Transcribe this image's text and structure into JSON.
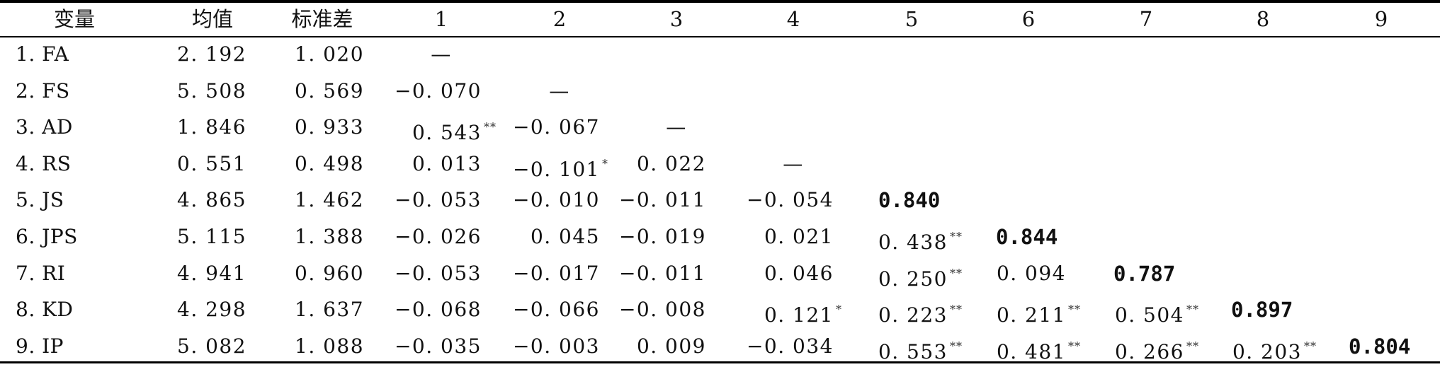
{
  "table": {
    "headers": [
      "变量",
      "均值",
      "标准差",
      "1",
      "2",
      "3",
      "4",
      "5",
      "6",
      "7",
      "8",
      "9"
    ],
    "rows": [
      {
        "var": "1. FA",
        "mean": "2. 192",
        "sd": "1. 020",
        "c": [
          {
            "v": "—"
          }
        ]
      },
      {
        "var": "2. FS",
        "mean": "5. 508",
        "sd": "0. 569",
        "c": [
          {
            "v": "−0. 070"
          },
          {
            "v": "—"
          }
        ]
      },
      {
        "var": "3. AD",
        "mean": "1. 846",
        "sd": "0. 933",
        "c": [
          {
            "v": "0. 543",
            "sig": "**"
          },
          {
            "v": "−0. 067"
          },
          {
            "v": "—"
          }
        ]
      },
      {
        "var": "4. RS",
        "mean": "0. 551",
        "sd": "0. 498",
        "c": [
          {
            "v": "0. 013"
          },
          {
            "v": "−0. 101",
            "sig": "*"
          },
          {
            "v": "0. 022"
          },
          {
            "v": "—"
          }
        ]
      },
      {
        "var": "5. JS",
        "mean": "4. 865",
        "sd": "1. 462",
        "c": [
          {
            "v": "−0. 053"
          },
          {
            "v": "−0. 010"
          },
          {
            "v": "−0. 011"
          },
          {
            "v": "−0. 054"
          },
          {
            "v": "0.840",
            "bold": true
          }
        ]
      },
      {
        "var": "6. JPS",
        "mean": "5. 115",
        "sd": "1. 388",
        "c": [
          {
            "v": "−0. 026"
          },
          {
            "v": "0. 045"
          },
          {
            "v": "−0. 019"
          },
          {
            "v": "0. 021"
          },
          {
            "v": "0. 438",
            "sig": "**"
          },
          {
            "v": "0.844",
            "bold": true
          }
        ]
      },
      {
        "var": "7. RI",
        "mean": "4. 941",
        "sd": "0. 960",
        "c": [
          {
            "v": "−0. 053"
          },
          {
            "v": "−0. 017"
          },
          {
            "v": "−0. 011"
          },
          {
            "v": "0. 046"
          },
          {
            "v": "0. 250",
            "sig": "**"
          },
          {
            "v": "0. 094"
          },
          {
            "v": "0.787",
            "bold": true
          }
        ]
      },
      {
        "var": "8. KD",
        "mean": "4. 298",
        "sd": "1. 637",
        "c": [
          {
            "v": "−0. 068"
          },
          {
            "v": "−0. 066"
          },
          {
            "v": "−0. 008"
          },
          {
            "v": "0. 121",
            "sig": "*"
          },
          {
            "v": "0. 223",
            "sig": "**"
          },
          {
            "v": "0. 211",
            "sig": "**"
          },
          {
            "v": "0. 504",
            "sig": "**"
          },
          {
            "v": "0.897",
            "bold": true
          }
        ]
      },
      {
        "var": "9. IP",
        "mean": "5. 082",
        "sd": "1. 088",
        "c": [
          {
            "v": "−0. 035"
          },
          {
            "v": "−0. 003"
          },
          {
            "v": "0. 009"
          },
          {
            "v": "−0. 034"
          },
          {
            "v": "0. 553",
            "sig": "**"
          },
          {
            "v": "0. 481",
            "sig": "**"
          },
          {
            "v": "0. 266",
            "sig": "**"
          },
          {
            "v": "0. 203",
            "sig": "**"
          },
          {
            "v": "0.804",
            "bold": true
          }
        ]
      }
    ]
  }
}
